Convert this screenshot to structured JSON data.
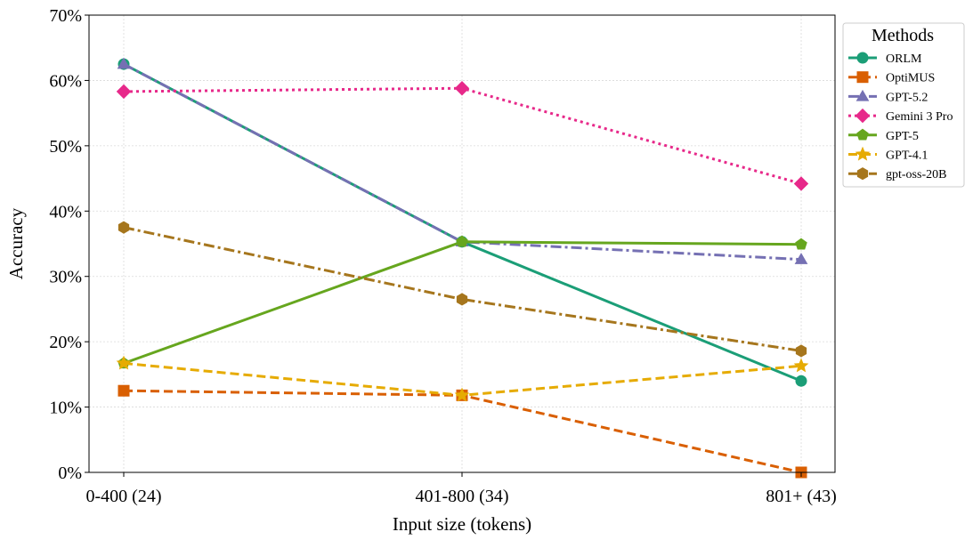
{
  "chart_data": {
    "type": "line",
    "xlabel": "Input size (tokens)",
    "ylabel": "Accuracy",
    "categories": [
      "0-400 (24)",
      "401-800 (34)",
      "801+ (43)"
    ],
    "ylim": [
      0,
      70
    ],
    "yticks": [
      0,
      10,
      20,
      30,
      40,
      50,
      60,
      70
    ],
    "ytick_labels": [
      "0%",
      "10%",
      "20%",
      "30%",
      "40%",
      "50%",
      "60%",
      "70%"
    ],
    "grid": true,
    "legend": {
      "title": "Methods",
      "placement": "outside-right-top"
    },
    "series": [
      {
        "name": "ORLM",
        "values": [
          62.5,
          35.3,
          14.0
        ],
        "color": "#1b9e77",
        "dash": "solid",
        "marker": "circle"
      },
      {
        "name": "OptiMUS",
        "values": [
          12.5,
          11.8,
          0.0
        ],
        "color": "#d95f02",
        "dash": "dashed",
        "marker": "square"
      },
      {
        "name": "GPT-5.2",
        "values": [
          62.5,
          35.3,
          32.6
        ],
        "color": "#7570b3",
        "dash": "dashdot",
        "marker": "triangle"
      },
      {
        "name": "Gemini 3 Pro",
        "values": [
          58.3,
          58.8,
          44.2
        ],
        "color": "#e7298a",
        "dash": "dotted",
        "marker": "diamond"
      },
      {
        "name": "GPT-5",
        "values": [
          16.7,
          35.3,
          34.9
        ],
        "color": "#66a61e",
        "dash": "solid",
        "marker": "pentagon"
      },
      {
        "name": "GPT-4.1",
        "values": [
          16.7,
          11.8,
          16.3
        ],
        "color": "#e6ab02",
        "dash": "dashed",
        "marker": "star"
      },
      {
        "name": "gpt-oss-20B",
        "values": [
          37.5,
          26.5,
          18.6
        ],
        "color": "#a6761d",
        "dash": "dashdot",
        "marker": "hexagon"
      }
    ]
  }
}
